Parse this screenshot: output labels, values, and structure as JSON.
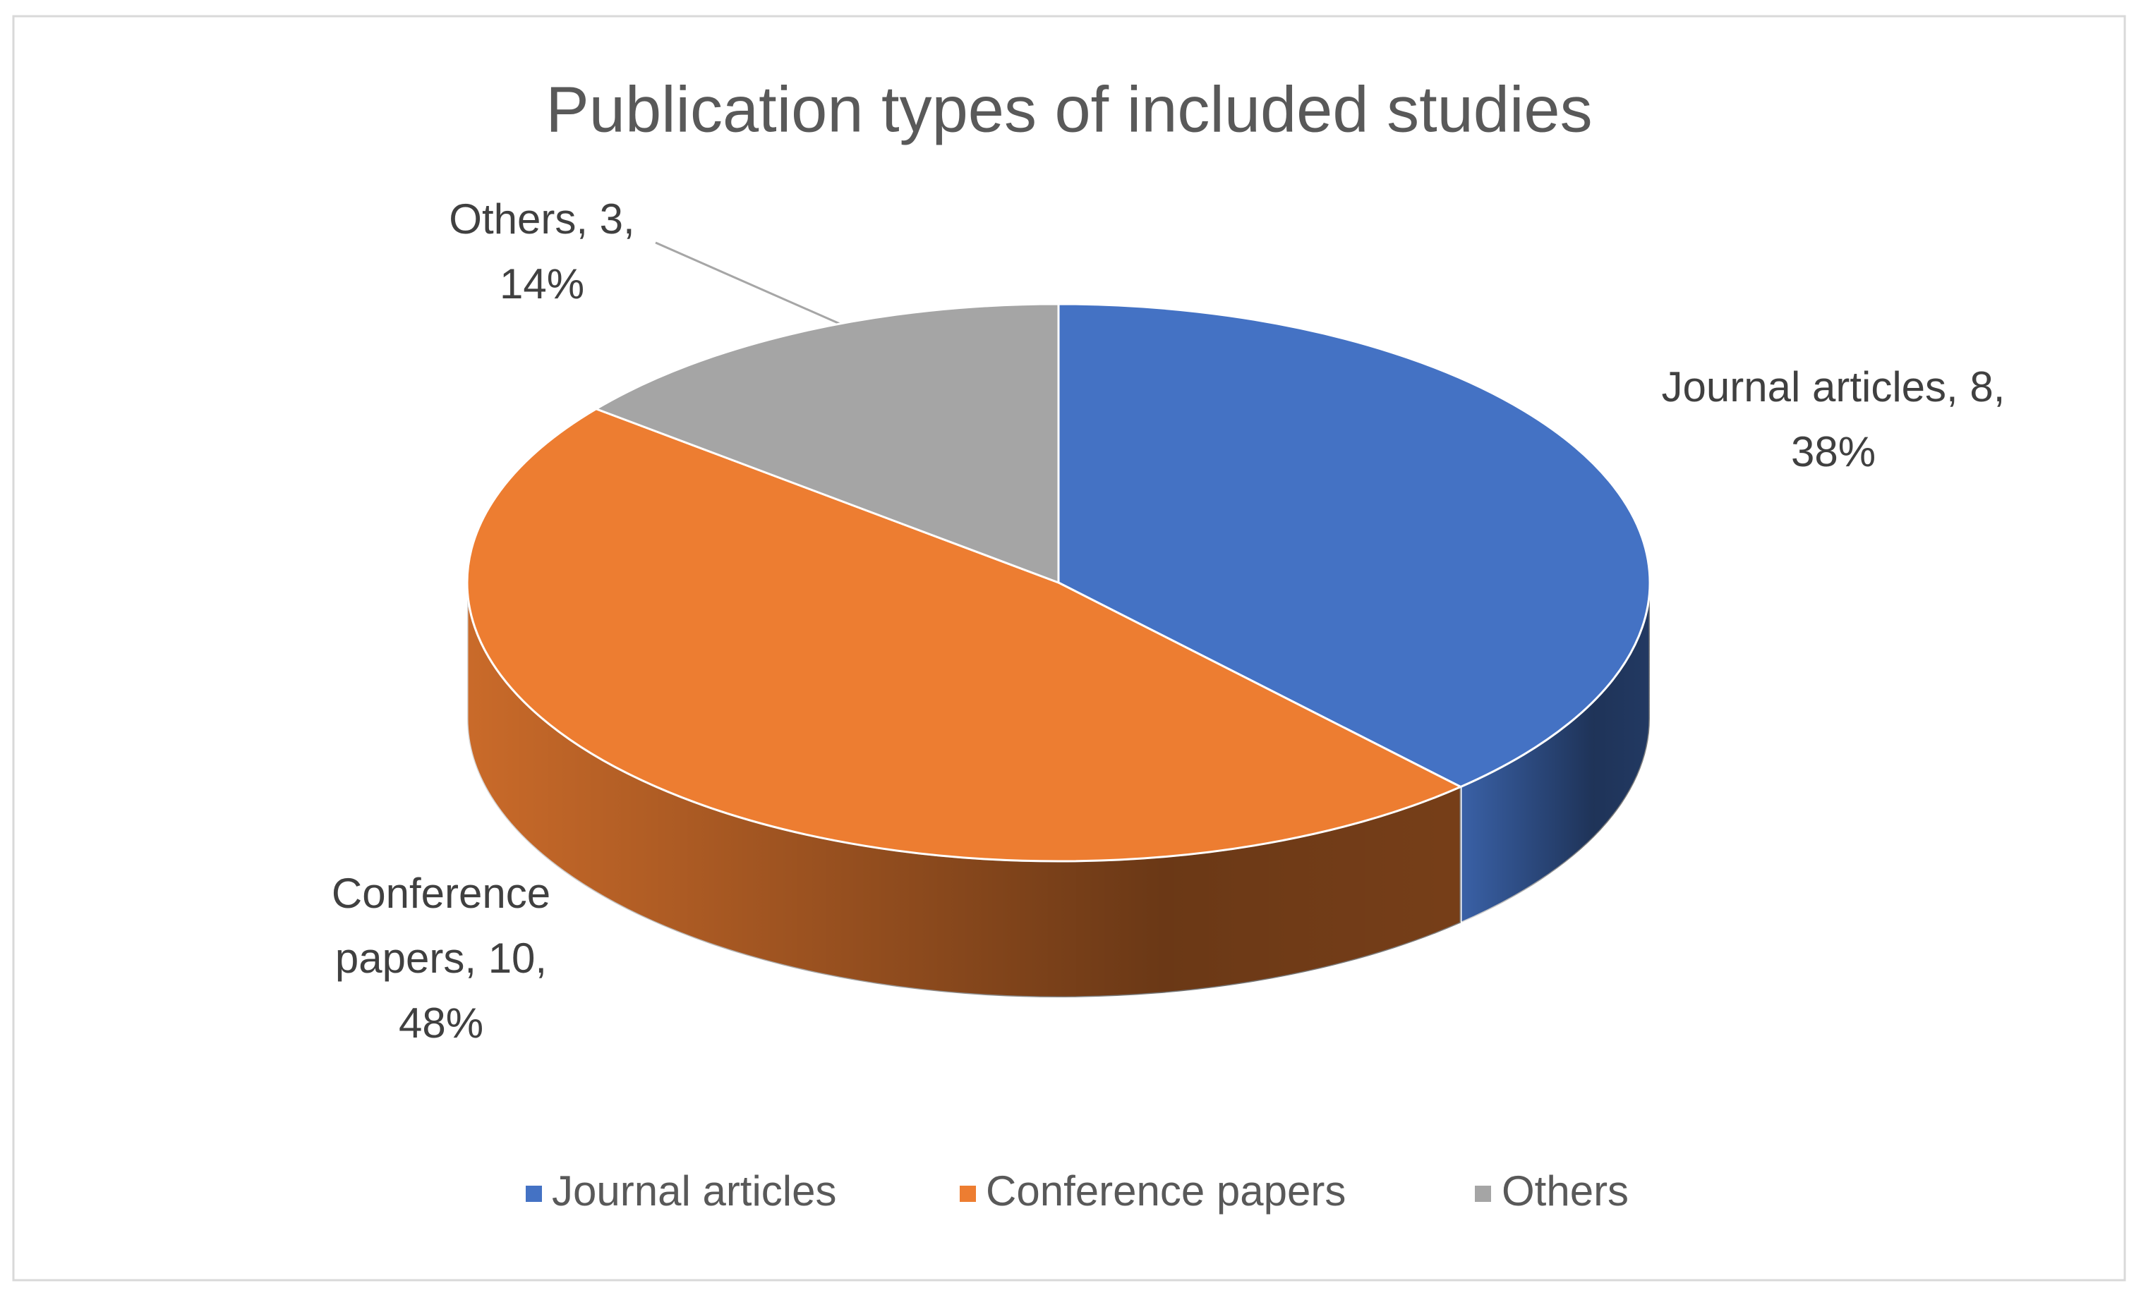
{
  "chart_data": {
    "type": "pie",
    "title": "Publication types of included studies",
    "categories": [
      "Journal articles",
      "Conference papers",
      "Others"
    ],
    "values": [
      8,
      10,
      3
    ],
    "colors": [
      "#4472c4",
      "#ed7d31",
      "#a5a5a5"
    ],
    "data_labels": [
      [
        "Journal articles, 8,",
        "38%"
      ],
      [
        "Conference",
        "papers, 10,",
        "48%"
      ],
      [
        "Others, 3,",
        "14%"
      ]
    ],
    "legend": "bottom"
  }
}
